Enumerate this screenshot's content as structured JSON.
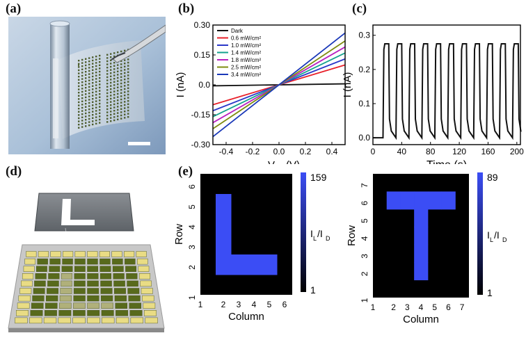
{
  "panels": {
    "a": "(a)",
    "b": "(b)",
    "c": "(c)",
    "d": "(d)",
    "e": "(e)"
  },
  "chart_data": [
    {
      "id": "b",
      "type": "line",
      "xlabel": "V",
      "xlabel_sub": "ds",
      "xlabel_unit": "(V)",
      "ylabel": "I (nA)",
      "xlim": [
        -0.5,
        0.5
      ],
      "ylim": [
        -0.3,
        0.3
      ],
      "xticks": [
        -0.4,
        -0.2,
        0.0,
        0.2,
        0.4
      ],
      "xtick_labels": [
        "-0.4",
        "-0.2",
        "0.0",
        "0.2",
        "0.4"
      ],
      "yticks": [
        0.3,
        0.15,
        0.0,
        -0.15,
        -0.3
      ],
      "ytick_labels": [
        "0.30",
        "0.15",
        "0.0",
        "-0.15",
        "-0.30"
      ],
      "legend_position": "top-left",
      "series": [
        {
          "name": "Dark",
          "color": "#111111",
          "x": [
            -0.5,
            0.5
          ],
          "y": [
            -0.005,
            0.005
          ]
        },
        {
          "name": "0.6 mW/cm²",
          "color": "#e8202a",
          "x": [
            -0.5,
            0.5
          ],
          "y": [
            -0.1,
            0.1
          ]
        },
        {
          "name": "1.0 mW/cm²",
          "color": "#2a36c8",
          "x": [
            -0.5,
            0.5
          ],
          "y": [
            -0.13,
            0.13
          ]
        },
        {
          "name": "1.4 mW/cm²",
          "color": "#15a28e",
          "x": [
            -0.5,
            0.5
          ],
          "y": [
            -0.16,
            0.16
          ]
        },
        {
          "name": "1.8 mW/cm²",
          "color": "#b81fbf",
          "x": [
            -0.5,
            0.5
          ],
          "y": [
            -0.19,
            0.19
          ]
        },
        {
          "name": "2.5 mW/cm²",
          "color": "#7f8c10",
          "x": [
            -0.5,
            0.5
          ],
          "y": [
            -0.22,
            0.22
          ]
        },
        {
          "name": "3.4 mW/cm²",
          "color": "#1a38b8",
          "x": [
            -0.5,
            0.5
          ],
          "y": [
            -0.26,
            0.26
          ]
        }
      ]
    },
    {
      "id": "c",
      "type": "line",
      "xlabel": "Time (s)",
      "ylabel": "I (nA)",
      "xlim": [
        0,
        205
      ],
      "ylim": [
        -0.02,
        0.33
      ],
      "xticks": [
        0,
        40,
        80,
        120,
        160,
        200
      ],
      "xtick_labels": [
        "0",
        "40",
        "80",
        "120",
        "160",
        "200"
      ],
      "yticks": [
        0.0,
        0.1,
        0.2,
        0.3
      ],
      "ytick_labels": [
        "0.0",
        "0.1",
        "0.2",
        "0.3"
      ],
      "series": [
        {
          "name": "",
          "color": "#111111",
          "pulses": {
            "first_on": 14,
            "period": 18,
            "on_duration": 8,
            "count": 11,
            "high": 0.275,
            "low": 0.0
          }
        }
      ]
    },
    {
      "id": "e1",
      "type": "heatmap",
      "xlabel": "Column",
      "ylabel": "Row",
      "columns": [
        1,
        2,
        3,
        4,
        5,
        6
      ],
      "rows": [
        1,
        2,
        3,
        4,
        5,
        6
      ],
      "xtick_labels": [
        "1",
        "2",
        "3",
        "4",
        "5",
        "6"
      ],
      "ytick_labels": [
        "1",
        "2",
        "3",
        "4",
        "5",
        "6"
      ],
      "colorbar": {
        "max_label": "159",
        "min_label": "1",
        "label": "I",
        "label_sub_1": "L",
        "label_sep": "/I",
        "label_sub_2": "D",
        "max": 159,
        "min": 1
      },
      "bright_cells": [
        [
          2,
          2
        ],
        [
          2,
          3
        ],
        [
          2,
          4
        ],
        [
          2,
          5
        ],
        [
          3,
          2
        ],
        [
          4,
          2
        ],
        [
          5,
          2
        ]
      ],
      "bright_value": 159,
      "low_value": 1
    },
    {
      "id": "e2",
      "type": "heatmap",
      "xlabel": "Column",
      "ylabel": "Row",
      "columns": [
        1,
        2,
        3,
        4,
        5,
        6,
        7
      ],
      "rows": [
        1,
        2,
        3,
        4,
        5,
        6,
        7
      ],
      "xtick_labels": [
        "1",
        "2",
        "3",
        "4",
        "5",
        "6",
        "7"
      ],
      "ytick_labels": [
        "1",
        "2",
        "3",
        "4",
        "5",
        "6",
        "7"
      ],
      "colorbar": {
        "max_label": "89",
        "min_label": "1",
        "label": "I",
        "label_sub_1": "L",
        "label_sep": "/I",
        "label_sub_2": "D",
        "max": 89,
        "min": 1
      },
      "bright_cells": [
        [
          2,
          6
        ],
        [
          3,
          6
        ],
        [
          4,
          6
        ],
        [
          5,
          6
        ],
        [
          6,
          6
        ],
        [
          4,
          2
        ],
        [
          4,
          3
        ],
        [
          4,
          4
        ],
        [
          4,
          5
        ]
      ],
      "bright_value": 89,
      "low_value": 1
    }
  ],
  "colors": {
    "bright": "#3b4df5",
    "dark": "#000000"
  }
}
